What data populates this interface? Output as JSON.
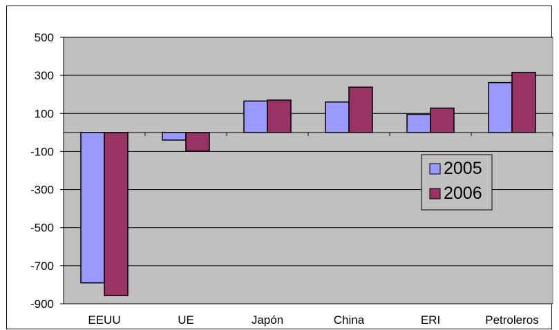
{
  "chart_data": {
    "type": "bar",
    "title": "",
    "xlabel": "",
    "ylabel": "",
    "categories": [
      "EEUU",
      "UE",
      "Japón",
      "China",
      "ERI",
      "Petroleros"
    ],
    "series": [
      {
        "name": "2005",
        "color": "#9999FF",
        "values": [
          -790,
          -40,
          165,
          160,
          95,
          262
        ]
      },
      {
        "name": "2006",
        "color": "#993366",
        "values": [
          -857,
          -98,
          170,
          238,
          128,
          316
        ]
      }
    ],
    "ylim": [
      -900,
      500
    ],
    "yticks": [
      500,
      300,
      100,
      -100,
      -300,
      -500,
      -700,
      -900
    ],
    "ytick_labels": [
      "500",
      "300",
      "100",
      "-100",
      "-300",
      "-500",
      "-700",
      "-900"
    ],
    "plot_background": "#C0C0C0",
    "grid": true,
    "legend_position": "right"
  }
}
